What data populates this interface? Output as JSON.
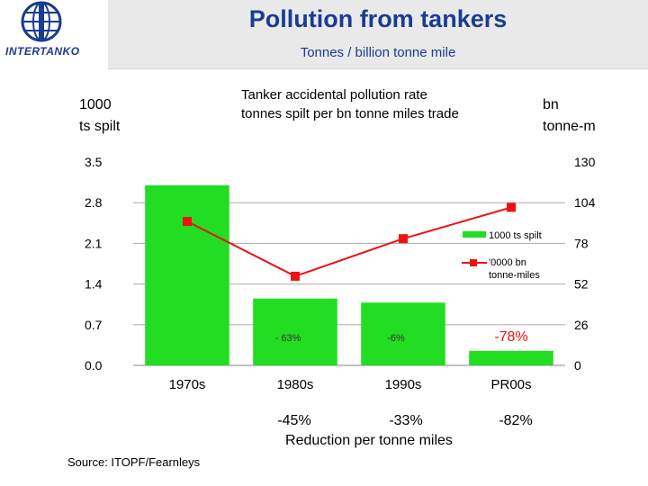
{
  "header": {
    "title": "Pollution from tankers",
    "subtitle": "Tonnes / billion tonne mile",
    "logo_text": "INTERTANKO"
  },
  "left_axis_label": [
    "1000",
    "ts spilt"
  ],
  "right_axis_label": [
    "bn",
    "tonne-m"
  ],
  "source": "Source: ITOPF/Fearnleys",
  "footer_reductions": [
    "-45%",
    "-33%",
    "-82%"
  ],
  "footer_caption": "Reduction per tonne miles",
  "colors": {
    "bar": "#22dd22",
    "line": "#ee1111",
    "title": "#1a3d8f"
  },
  "chart_data": {
    "type": "bar+line",
    "title": [
      "Tanker accidental pollution rate",
      "tonnes spilt per bn tonne miles trade"
    ],
    "categories": [
      "1970s",
      "1980s",
      "1990s",
      "PR00s"
    ],
    "y_left": {
      "ticks": [
        "3.5",
        "2.8",
        "2.1",
        "1.4",
        "0.7",
        "0.0"
      ],
      "range": [
        0,
        3.5
      ]
    },
    "y_right": {
      "ticks": [
        "130",
        "104",
        "78",
        "52",
        "26",
        "0"
      ],
      "range": [
        0,
        130
      ]
    },
    "series": [
      {
        "name": "1000 ts spilt",
        "type": "bar",
        "axis": "left",
        "values": [
          3.1,
          1.15,
          1.08,
          0.25
        ]
      },
      {
        "name": [
          "'0000 bn",
          "tonne-miles"
        ],
        "type": "line",
        "axis": "right",
        "values": [
          92,
          57,
          81,
          101
        ]
      }
    ],
    "annotations": [
      {
        "text": "- 63%",
        "category": 1,
        "style": "small"
      },
      {
        "text": "-6%",
        "category": 2,
        "style": "small"
      },
      {
        "text": "-78%",
        "category": 3,
        "style": "red"
      }
    ]
  }
}
